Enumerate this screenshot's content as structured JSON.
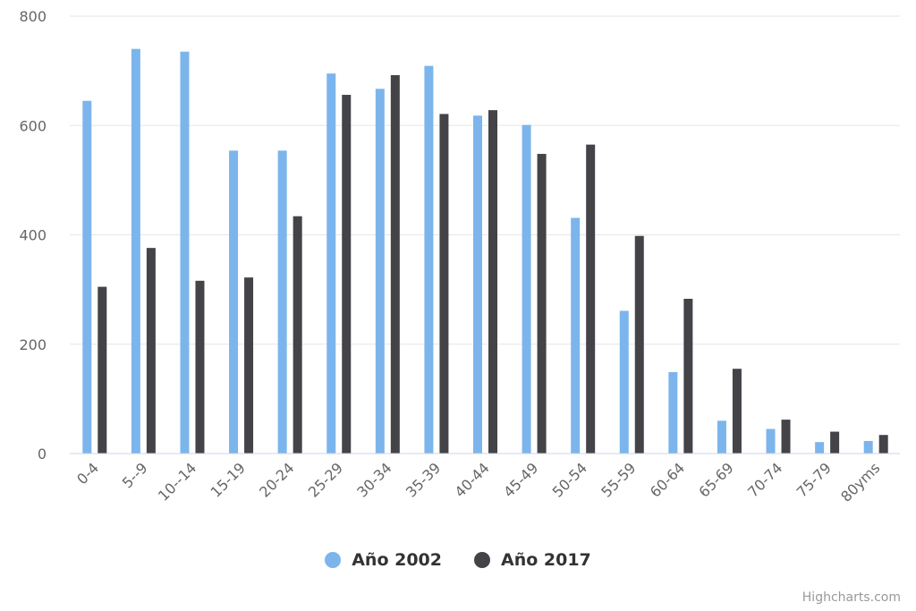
{
  "chart_data": {
    "type": "bar",
    "categories": [
      "0-4",
      "5--9",
      "10--14",
      "15-19",
      "20-24",
      "25-29",
      "30-34",
      "35-39",
      "40-44",
      "45-49",
      "50-54",
      "55-59",
      "60-64",
      "65-69",
      "70-74",
      "75-79",
      "80yms"
    ],
    "series": [
      {
        "name": "Año 2002",
        "color": "#7cb5ec",
        "values": [
          645,
          740,
          735,
          554,
          554,
          695,
          667,
          709,
          618,
          601,
          431,
          261,
          149,
          60,
          45,
          21,
          23
        ]
      },
      {
        "name": "Año 2017",
        "color": "#434348",
        "values": [
          305,
          376,
          316,
          322,
          434,
          656,
          692,
          621,
          628,
          548,
          565,
          398,
          283,
          155,
          62,
          40,
          34
        ]
      }
    ],
    "ylim": [
      0,
      800
    ],
    "yticks": [
      0,
      200,
      400,
      600,
      800
    ],
    "grid": true,
    "legend_position": "bottom-center",
    "title": "",
    "xlabel": "",
    "ylabel": ""
  },
  "credits": "Highcharts.com"
}
